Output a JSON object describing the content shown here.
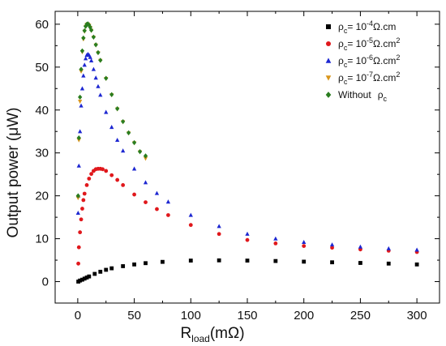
{
  "chart_data": {
    "type": "scatter",
    "xlabel": {
      "main": "R",
      "sub": "load",
      "unit": "(mΩ)"
    },
    "ylabel": "Output power (μW)",
    "xlim": [
      -20,
      320
    ],
    "ylim": [
      -5,
      63
    ],
    "x_ticks": [
      0,
      50,
      100,
      150,
      200,
      250,
      300
    ],
    "y_ticks": [
      0,
      10,
      20,
      30,
      40,
      50,
      60
    ],
    "grid": false,
    "legend_position": "top-right",
    "series": [
      {
        "name": "ρc= 10-4Ω.cm",
        "legend": {
          "rho": "ρ",
          "rho_sub": "c",
          "eq": "= 10",
          "exp": "-4",
          "unit": "Ω.cm",
          "unit_sup": ""
        },
        "marker": "square",
        "color": "#000000",
        "x": [
          0.5,
          2,
          4,
          6,
          8,
          10,
          15,
          20,
          25,
          30,
          40,
          50,
          60,
          75,
          100,
          125,
          150,
          175,
          200,
          225,
          250,
          275,
          300
        ],
        "y": [
          0.0,
          0.25,
          0.45,
          0.7,
          0.95,
          1.2,
          1.8,
          2.3,
          2.75,
          3.1,
          3.6,
          4.0,
          4.3,
          4.6,
          4.9,
          4.95,
          4.9,
          4.8,
          4.65,
          4.5,
          4.35,
          4.2,
          4.0
        ]
      },
      {
        "name": "ρc= 10-5Ω.cm2",
        "legend": {
          "rho": "ρ",
          "rho_sub": "c",
          "eq": "= 10",
          "exp": "-5",
          "unit": "Ω.cm",
          "unit_sup": "2"
        },
        "marker": "circle",
        "color": "#e0181c",
        "x": [
          0.5,
          1,
          2,
          3,
          4,
          5,
          6,
          8,
          10,
          12,
          14,
          16,
          18,
          20,
          22,
          25,
          30,
          35,
          40,
          50,
          60,
          70,
          80,
          100,
          125,
          150,
          175,
          200,
          225,
          250,
          275,
          300
        ],
        "y": [
          4.2,
          8,
          11.5,
          14.5,
          17,
          19,
          20.5,
          22.5,
          24,
          25.1,
          25.8,
          26.2,
          26.3,
          26.3,
          26.2,
          25.8,
          24.8,
          23.7,
          22.5,
          20.3,
          18.5,
          16.9,
          15.5,
          13.2,
          11.1,
          9.7,
          8.9,
          8.3,
          7.9,
          7.5,
          7.2,
          6.9
        ]
      },
      {
        "name": "ρc= 10-6Ω.cm2",
        "legend": {
          "rho": "ρ",
          "rho_sub": "c",
          "eq": "= 10",
          "exp": "-6",
          "unit": "Ω.cm",
          "unit_sup": "2"
        },
        "marker": "triangle-up",
        "color": "#1d27d1",
        "x": [
          0.3,
          0.6,
          1,
          2,
          3,
          4,
          5,
          6,
          7,
          8,
          9,
          10,
          11,
          12,
          14,
          16,
          18,
          20,
          25,
          30,
          35,
          40,
          50,
          60,
          70,
          80,
          100,
          125,
          150,
          175,
          200,
          225,
          250,
          275,
          300
        ],
        "y": [
          16,
          20,
          27,
          35,
          41,
          45,
          48,
          50.5,
          52,
          52.8,
          53,
          52.8,
          52.3,
          51.5,
          49.5,
          47.5,
          45.5,
          43.5,
          39.5,
          36,
          33,
          30.5,
          26.3,
          23.1,
          20.6,
          18.6,
          15.5,
          12.9,
          11.1,
          10.0,
          9.2,
          8.6,
          8.1,
          7.7,
          7.4
        ]
      },
      {
        "name": "ρc= 10-7Ω.cm2",
        "legend": {
          "rho": "ρ",
          "rho_sub": "c",
          "eq": "= 10",
          "exp": "-7",
          "unit": "Ω.cm",
          "unit_sup": "2"
        },
        "marker": "triangle-down",
        "color": "#d9961c",
        "x": [
          0.3,
          1,
          2,
          3,
          4,
          5,
          6,
          7,
          8,
          9,
          10,
          11,
          12,
          14,
          16,
          18,
          20,
          25,
          30,
          35,
          40,
          45,
          50,
          55,
          60
        ],
        "y": [
          19.5,
          33,
          42,
          49,
          53.5,
          56.5,
          58.3,
          59.4,
          59.9,
          60,
          59.7,
          59.2,
          58.5,
          56.9,
          55.1,
          53.3,
          51.5,
          47.3,
          43.5,
          40.2,
          37.2,
          34.6,
          32.3,
          30.2,
          28.7
        ]
      },
      {
        "name": "Without  ρc",
        "legend": {
          "text": "Without",
          "rho": "ρ",
          "rho_sub": "c"
        },
        "marker": "diamond",
        "color": "#2a7d1f",
        "x": [
          0.3,
          1,
          2,
          3,
          4,
          5,
          6,
          7,
          8,
          9,
          10,
          11,
          12,
          14,
          16,
          18,
          20,
          25,
          30,
          35,
          40,
          45,
          50,
          55,
          60
        ],
        "y": [
          20,
          33.5,
          43,
          49.5,
          53.8,
          56.8,
          58.5,
          59.5,
          60,
          60.1,
          59.8,
          59.3,
          58.6,
          57,
          55.2,
          53.4,
          51.6,
          47.4,
          43.6,
          40.3,
          37.3,
          34.7,
          32.4,
          30.3,
          29.3
        ]
      }
    ]
  }
}
